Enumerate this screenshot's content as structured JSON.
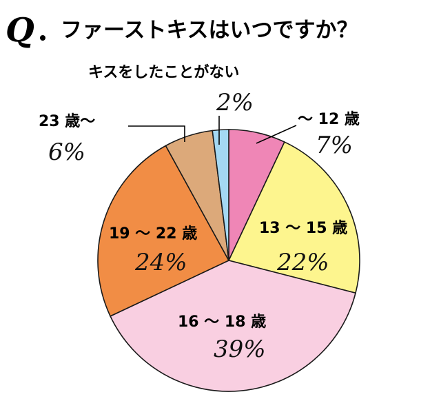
{
  "header": {
    "q_mark": "Q",
    "title": "ファーストキスはいつですか？"
  },
  "chart_data": {
    "type": "pie",
    "title": "ファーストキスはいつですか？",
    "start": "12 o'clock",
    "direction": "clockwise",
    "categories": [
      "〜 12 歳",
      "13 〜 15 歳",
      "16 〜 18 歳",
      "19 〜 22 歳",
      "23 歳〜",
      "キスをしたことがない"
    ],
    "values": [
      7,
      22,
      39,
      24,
      6,
      2
    ],
    "value_labels": [
      "7%",
      "22%",
      "39%",
      "24%",
      "6%",
      "2%"
    ],
    "colors": [
      "#ef86b6",
      "#fdf58e",
      "#f9cfe1",
      "#f18d45",
      "#dca97a",
      "#a4d8f3"
    ]
  }
}
